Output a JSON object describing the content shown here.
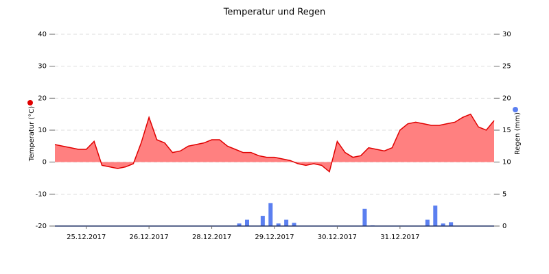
{
  "chart_data": {
    "type": "line",
    "title": "Temperatur und Regen",
    "y_label": "Temperatur (°C)",
    "y2_label": "Regen (mm)",
    "xlim": [
      0,
      168
    ],
    "xticks": [
      {
        "value": 12,
        "label": "25.12.2017"
      },
      {
        "value": 36,
        "label": "26.12.2017"
      },
      {
        "value": 60,
        "label": "28.12.2017"
      },
      {
        "value": 84,
        "label": "29.12.2017"
      },
      {
        "value": 108,
        "label": "30.12.2017"
      },
      {
        "value": 132,
        "label": "31.12.2017"
      }
    ],
    "ylim": [
      -20,
      40
    ],
    "yticks": [
      -20,
      -10,
      0,
      10,
      20,
      30,
      40
    ],
    "y2lim": [
      0,
      30
    ],
    "y2ticks": [
      0,
      5,
      10,
      15,
      20,
      25,
      30
    ],
    "grid": true,
    "series": [
      {
        "type": "area",
        "color": "#e00000",
        "fill": "#ff8080",
        "x": [
          0,
          3,
          6,
          9,
          12,
          15,
          18,
          21,
          24,
          27,
          30,
          33,
          36,
          39,
          42,
          45,
          48,
          51,
          54,
          57,
          60,
          63,
          66,
          69,
          72,
          75,
          78,
          81,
          84,
          87,
          90,
          93,
          96,
          99,
          102,
          105,
          108,
          111,
          114,
          117,
          120,
          123,
          126,
          129,
          132,
          135,
          138,
          141,
          144,
          147,
          150,
          153,
          156,
          159,
          162,
          165,
          168
        ],
        "values": [
          5.5,
          5,
          4.5,
          4,
          4,
          6.5,
          -1,
          -1.5,
          -2,
          -1.5,
          -0.5,
          6,
          14,
          7,
          6,
          3,
          3.5,
          5,
          5.5,
          6,
          7,
          7,
          5,
          4,
          3,
          3,
          2,
          1.5,
          1.5,
          1,
          0.5,
          -0.5,
          -1,
          -0.5,
          -1,
          -3,
          6.5,
          3,
          1.5,
          2,
          4.5,
          4,
          3.5,
          4.5,
          10,
          12,
          12.5,
          12,
          11.5,
          11.5,
          12,
          12.5,
          14,
          15,
          11,
          10,
          13
        ]
      },
      {
        "type": "bar",
        "axis": "y2",
        "color": "#5b7ff0",
        "x": [
          70.5,
          73.5,
          79.5,
          82.5,
          85.5,
          88.5,
          91.5,
          118.5,
          121.5,
          142.5,
          145.5,
          148.5,
          151.5
        ],
        "values": [
          0.4,
          1.0,
          1.6,
          3.6,
          0.4,
          1.0,
          0.5,
          2.7,
          0.1,
          1.0,
          3.2,
          0.4,
          0.6
        ]
      }
    ]
  }
}
